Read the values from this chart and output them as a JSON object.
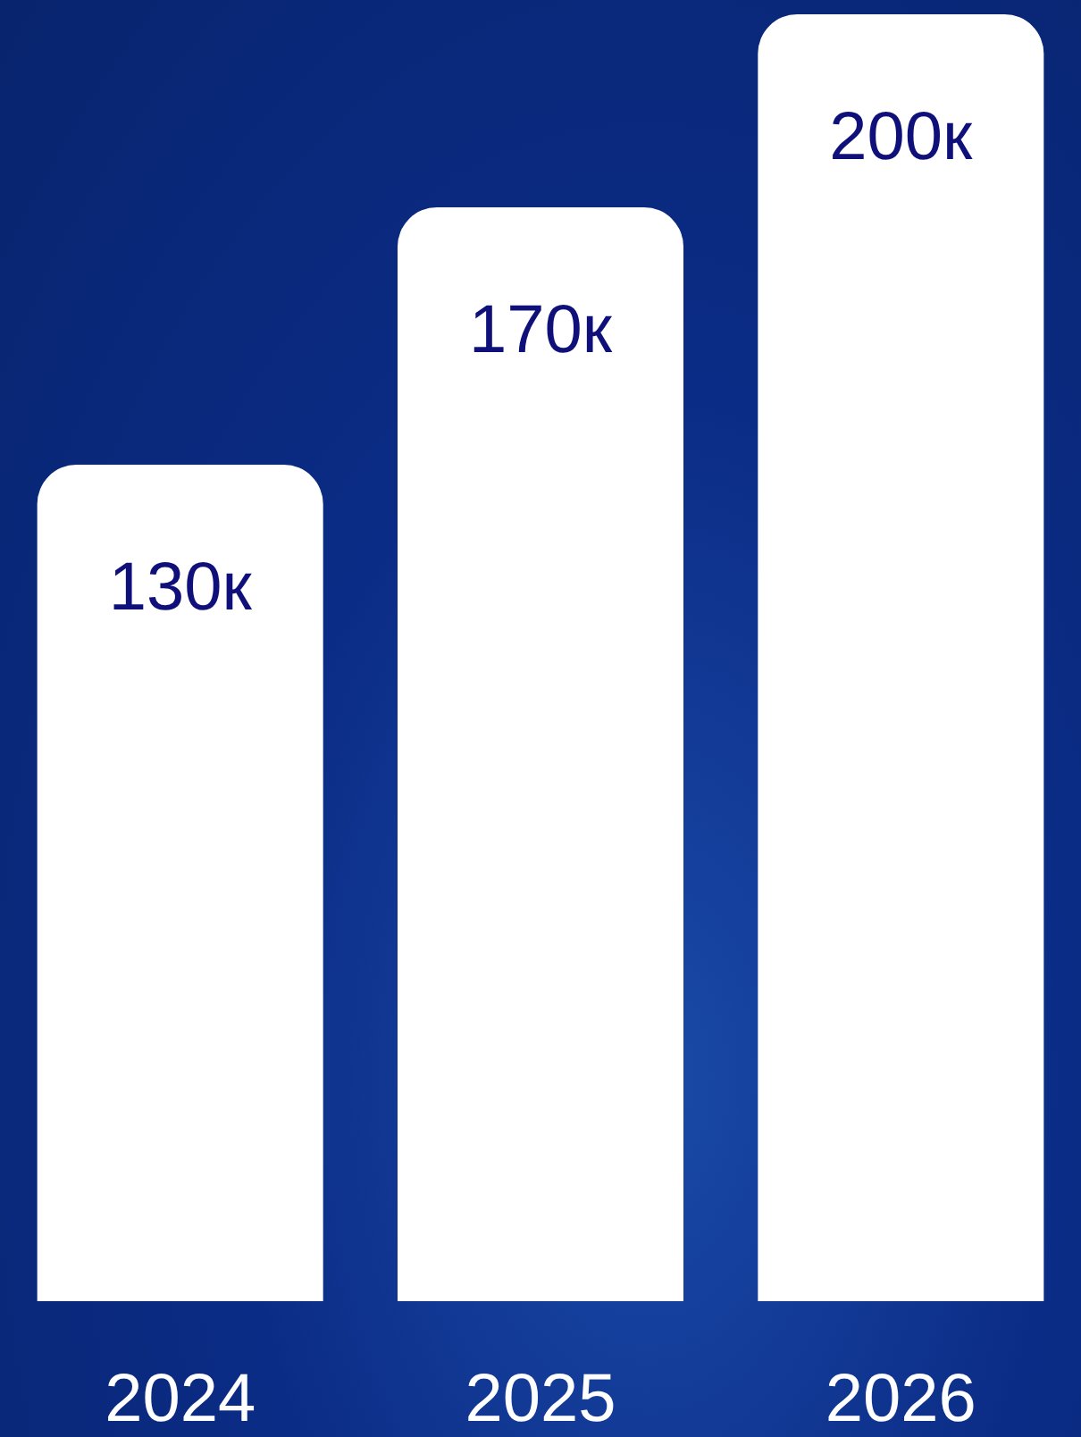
{
  "chart_data": {
    "type": "bar",
    "categories": [
      "2024",
      "2025",
      "2026"
    ],
    "values": [
      130,
      170,
      200
    ],
    "value_labels": [
      "130к",
      "170к",
      "200к"
    ],
    "color": "#ffffff",
    "tick_labels": "x"
  }
}
